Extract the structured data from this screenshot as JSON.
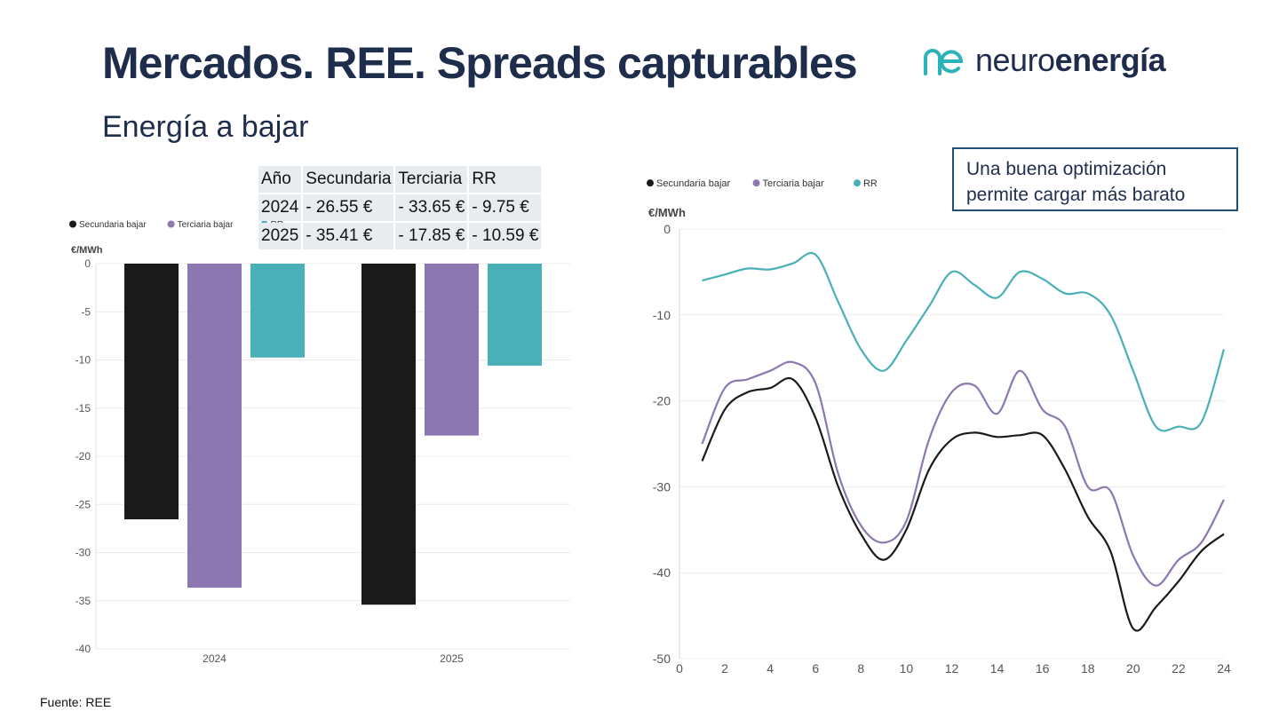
{
  "header": {
    "title": "Mercados. REE. Spreads capturables",
    "subtitle": "Energía a bajar",
    "logo_light": "neuro",
    "logo_bold": "energía"
  },
  "colors": {
    "secundaria": "#1a1a1a",
    "terciaria": "#8c77b0",
    "rr": "#49b0b8",
    "title": "#1f2d4d",
    "callout_border": "#1f4e79"
  },
  "callout": {
    "line1": "Una buena optimización",
    "line2": "permite cargar más barato"
  },
  "summary_table": {
    "headers": [
      "Año",
      "Secundaria",
      "Terciaria",
      "RR"
    ],
    "rows": [
      [
        "2024",
        "- 26.55 €",
        "- 33.65 €",
        "- 9.75 €"
      ],
      [
        "2025",
        "- 35.41 €",
        "- 17.85 €",
        "- 10.59 €"
      ]
    ]
  },
  "source": "Fuente: REE",
  "chart_data": [
    {
      "type": "bar",
      "ylabel": "€/MWh",
      "ylim": [
        -40,
        0
      ],
      "yticks": [
        0,
        -5,
        -10,
        -15,
        -20,
        -25,
        -30,
        -35,
        -40
      ],
      "categories": [
        "2024",
        "2025"
      ],
      "legend_position": "top-left",
      "grid": true,
      "series": [
        {
          "name": "Secundaria bajar",
          "values": [
            -26.55,
            -35.41
          ]
        },
        {
          "name": "Terciaria bajar",
          "values": [
            -33.65,
            -17.85
          ]
        },
        {
          "name": "RR",
          "values": [
            -9.75,
            -10.59
          ]
        }
      ]
    },
    {
      "type": "line",
      "ylabel": "€/MWh",
      "ylim": [
        -50,
        0
      ],
      "xlim": [
        0,
        24
      ],
      "yticks": [
        0,
        -10,
        -20,
        -30,
        -40,
        -50
      ],
      "xticks": [
        0,
        2,
        4,
        6,
        8,
        10,
        12,
        14,
        16,
        18,
        20,
        22,
        24
      ],
      "legend_position": "top-left",
      "grid": true,
      "x": [
        1,
        2,
        3,
        4,
        5,
        6,
        7,
        8,
        9,
        10,
        11,
        12,
        13,
        14,
        15,
        16,
        17,
        18,
        19,
        20,
        21,
        22,
        23,
        24
      ],
      "series": [
        {
          "name": "Secundaria bajar",
          "values": [
            -27,
            -21,
            -19,
            -18.5,
            -17.5,
            -22,
            -30,
            -35.5,
            -38.5,
            -35,
            -28,
            -24.5,
            -23.7,
            -24.2,
            -24,
            -24,
            -28,
            -33.5,
            -37.5,
            -46.5,
            -44,
            -41,
            -37.5,
            -35.5
          ]
        },
        {
          "name": "Terciaria bajar",
          "values": [
            -25,
            -18.5,
            -17.5,
            -16.5,
            -15.5,
            -18,
            -28.5,
            -34.5,
            -36.5,
            -34,
            -24.5,
            -19,
            -18.2,
            -21.5,
            -16.5,
            -21,
            -23,
            -30,
            -30.5,
            -38,
            -41.5,
            -38.5,
            -36.5,
            -31.5
          ]
        },
        {
          "name": "RR",
          "values": [
            -6,
            -5.3,
            -4.6,
            -4.7,
            -4,
            -3,
            -8.5,
            -14,
            -16.5,
            -13,
            -9,
            -5,
            -6.5,
            -8,
            -5,
            -5.8,
            -7.5,
            -7.5,
            -10,
            -16.5,
            -23,
            -23,
            -22.5,
            -14
          ]
        }
      ]
    }
  ]
}
